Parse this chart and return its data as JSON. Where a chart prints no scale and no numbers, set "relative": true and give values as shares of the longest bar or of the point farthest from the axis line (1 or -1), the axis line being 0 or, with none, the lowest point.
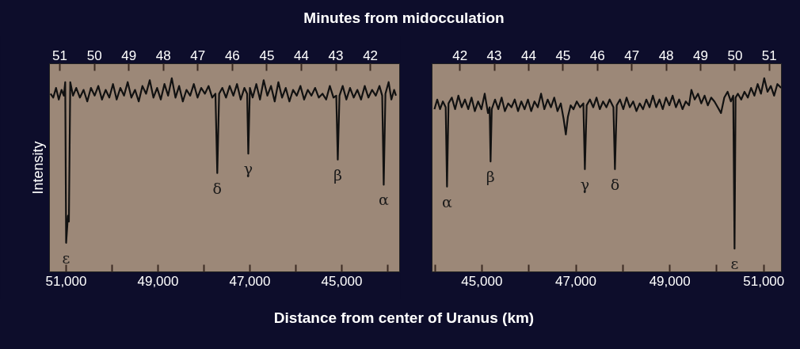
{
  "chart_data": [
    {
      "type": "line",
      "x2label": "Minutes from midocculation",
      "xlabel": "Distance from center of Uranus (km)",
      "ylabel": "Intensity",
      "relative": true,
      "xlim": [
        51362,
        43724
      ],
      "xticks": [
        {
          "value": 51000,
          "label": "51,000"
        },
        {
          "value": 50000,
          "label": null
        },
        {
          "value": 49000,
          "label": "49,000"
        },
        {
          "value": 48000,
          "label": null
        },
        {
          "value": 47000,
          "label": "47,000"
        },
        {
          "value": 46000,
          "label": null
        },
        {
          "value": 45000,
          "label": "45,000"
        },
        {
          "value": 44000,
          "label": null
        }
      ],
      "x2lim": [
        51.3,
        41.13
      ],
      "x2ticks": [
        51,
        50,
        49,
        48,
        47,
        46,
        45,
        44,
        43,
        42
      ],
      "series": [
        {
          "color": "#111111",
          "x": [
            51340,
            51280,
            51220,
            51160,
            51100,
            51050,
            51020,
            51000,
            50960,
            50940,
            50910,
            50850,
            50780,
            50700,
            50620,
            50540,
            50460,
            50380,
            50300,
            50220,
            50140,
            50060,
            49980,
            49900,
            49820,
            49740,
            49660,
            49580,
            49500,
            49420,
            49340,
            49260,
            49180,
            49100,
            49020,
            48940,
            48860,
            48780,
            48700,
            48620,
            48540,
            48460,
            48380,
            48300,
            48220,
            48140,
            48060,
            47980,
            47900,
            47820,
            47750,
            47710,
            47670,
            47600,
            47520,
            47440,
            47360,
            47280,
            47200,
            47120,
            47060,
            47035,
            47000,
            46940,
            46860,
            46780,
            46700,
            46620,
            46540,
            46460,
            46380,
            46300,
            46220,
            46140,
            46060,
            45980,
            45900,
            45820,
            45740,
            45660,
            45580,
            45500,
            45420,
            45340,
            45260,
            45180,
            45120,
            45087,
            45050,
            44980,
            44900,
            44820,
            44740,
            44660,
            44580,
            44500,
            44420,
            44340,
            44260,
            44180,
            44120,
            44087,
            44050,
            43980,
            43920,
            43860,
            43820
          ],
          "values": [
            0.92,
            0.9,
            0.95,
            0.89,
            0.94,
            0.91,
            0.98,
            0.15,
            0.29,
            0.26,
            0.98,
            0.91,
            0.95,
            0.9,
            0.94,
            0.88,
            0.95,
            0.91,
            0.96,
            0.89,
            0.94,
            0.9,
            0.97,
            0.89,
            0.95,
            0.91,
            0.98,
            0.9,
            0.94,
            0.88,
            0.96,
            0.92,
            0.99,
            0.9,
            0.95,
            0.89,
            0.97,
            0.91,
            1.0,
            0.9,
            0.96,
            0.88,
            0.94,
            0.91,
            0.97,
            0.9,
            0.95,
            0.92,
            0.96,
            0.9,
            0.92,
            0.51,
            0.92,
            0.95,
            0.9,
            0.96,
            0.91,
            0.97,
            0.89,
            0.95,
            0.92,
            0.61,
            0.95,
            0.9,
            0.97,
            0.89,
            0.99,
            0.91,
            0.96,
            0.88,
            0.98,
            0.9,
            0.95,
            0.88,
            0.94,
            0.91,
            0.96,
            0.89,
            0.94,
            0.91,
            0.95,
            0.9,
            0.92,
            0.89,
            0.96,
            0.9,
            0.91,
            0.58,
            0.91,
            0.96,
            0.89,
            0.95,
            0.9,
            0.94,
            0.89,
            0.96,
            0.9,
            0.94,
            0.91,
            0.96,
            0.91,
            0.45,
            0.92,
            0.98,
            0.89,
            0.94,
            0.91
          ]
        }
      ],
      "annotations": [
        {
          "text": "ε",
          "x": 51000,
          "y": 0.15
        },
        {
          "text": "δ",
          "x": 47710,
          "y": 0.51
        },
        {
          "text": "γ",
          "x": 47035,
          "y": 0.61
        },
        {
          "text": "β",
          "x": 45087,
          "y": 0.58
        },
        {
          "text": "α",
          "x": 44087,
          "y": 0.45
        }
      ]
    },
    {
      "type": "line",
      "relative": true,
      "xlim": [
        43940,
        51375
      ],
      "xticks": [
        {
          "value": 44000,
          "label": null
        },
        {
          "value": 45000,
          "label": "45,000"
        },
        {
          "value": 46000,
          "label": null
        },
        {
          "value": 47000,
          "label": "47,000"
        },
        {
          "value": 48000,
          "label": null
        },
        {
          "value": 49000,
          "label": "49,000"
        },
        {
          "value": 50000,
          "label": null
        },
        {
          "value": 51000,
          "label": "51,000"
        }
      ],
      "x2lim": [
        41.19,
        51.35
      ],
      "x2ticks": [
        42,
        43,
        44,
        45,
        46,
        47,
        48,
        49,
        50,
        51
      ],
      "series": [
        {
          "color": "#111111",
          "x": [
            43990,
            44050,
            44110,
            44170,
            44230,
            44258,
            44290,
            44360,
            44430,
            44500,
            44570,
            44640,
            44710,
            44780,
            44850,
            44920,
            44990,
            45060,
            45130,
            45165,
            45185,
            45210,
            45280,
            45350,
            45420,
            45490,
            45560,
            45630,
            45700,
            45770,
            45840,
            45910,
            45980,
            46050,
            46120,
            46190,
            46260,
            46330,
            46400,
            46470,
            46540,
            46610,
            46680,
            46740,
            46787,
            46830,
            46890,
            46950,
            47020,
            47090,
            47160,
            47192,
            47230,
            47300,
            47370,
            47440,
            47510,
            47580,
            47650,
            47720,
            47800,
            47832,
            47870,
            47940,
            48010,
            48080,
            48150,
            48220,
            48290,
            48360,
            48430,
            48500,
            48570,
            48640,
            48710,
            48780,
            48850,
            48920,
            48990,
            49060,
            49130,
            49200,
            49270,
            49340,
            49410,
            49460,
            49530,
            49600,
            49670,
            49740,
            49810,
            49880,
            49950,
            50020,
            50090,
            50160,
            50230,
            50300,
            50350,
            50378,
            50400,
            50450,
            50520,
            50590,
            50660,
            50730,
            50800,
            50870,
            50940,
            51010,
            51080,
            51150,
            51220,
            51290,
            51370
          ],
          "values": [
            0.84,
            0.89,
            0.84,
            0.88,
            0.85,
            0.44,
            0.87,
            0.9,
            0.84,
            0.91,
            0.85,
            0.89,
            0.84,
            0.9,
            0.83,
            0.88,
            0.84,
            0.92,
            0.82,
            0.85,
            0.57,
            0.84,
            0.89,
            0.84,
            0.9,
            0.83,
            0.87,
            0.85,
            0.89,
            0.83,
            0.88,
            0.84,
            0.89,
            0.83,
            0.88,
            0.85,
            0.92,
            0.84,
            0.89,
            0.85,
            0.9,
            0.83,
            0.87,
            0.79,
            0.71,
            0.8,
            0.86,
            0.84,
            0.88,
            0.85,
            0.87,
            0.53,
            0.86,
            0.89,
            0.85,
            0.9,
            0.84,
            0.88,
            0.85,
            0.89,
            0.85,
            0.53,
            0.86,
            0.89,
            0.84,
            0.9,
            0.85,
            0.88,
            0.83,
            0.87,
            0.84,
            0.89,
            0.85,
            0.91,
            0.85,
            0.89,
            0.84,
            0.9,
            0.86,
            0.91,
            0.85,
            0.89,
            0.84,
            0.88,
            0.86,
            0.94,
            0.89,
            0.92,
            0.87,
            0.91,
            0.86,
            0.9,
            0.88,
            0.85,
            0.82,
            0.9,
            0.93,
            0.88,
            0.91,
            0.12,
            0.9,
            0.92,
            0.89,
            0.93,
            0.9,
            0.95,
            0.91,
            0.97,
            0.92,
            1.0,
            0.93,
            0.96,
            0.91,
            0.97,
            0.95
          ]
        }
      ],
      "annotations": [
        {
          "text": "α",
          "x": 44258,
          "y": 0.44
        },
        {
          "text": "β",
          "x": 45185,
          "y": 0.57
        },
        {
          "text": "γ",
          "x": 47192,
          "y": 0.53
        },
        {
          "text": "δ",
          "x": 47832,
          "y": 0.53
        },
        {
          "text": "ε",
          "x": 50378,
          "y": 0.12
        }
      ]
    }
  ]
}
